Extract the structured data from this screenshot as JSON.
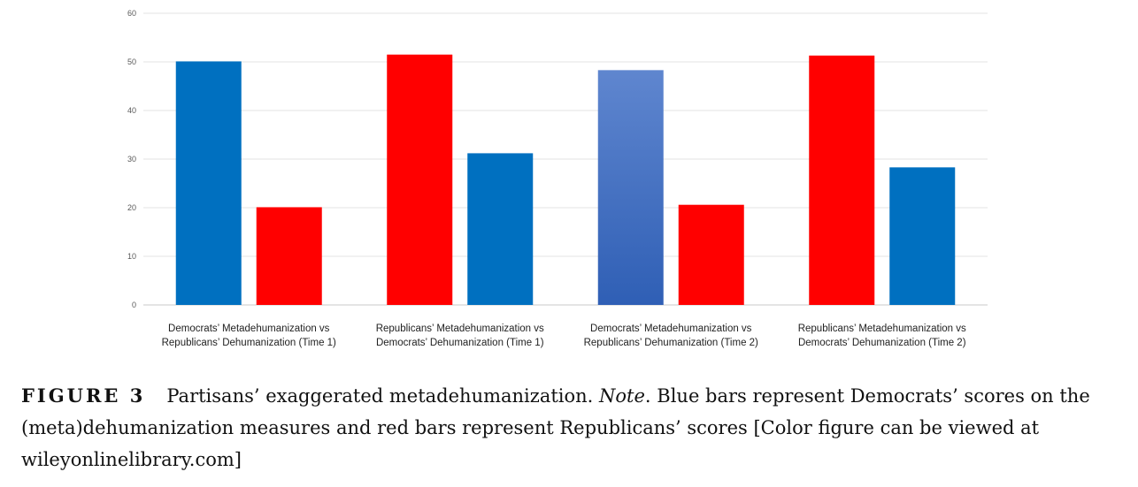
{
  "chart_data": {
    "type": "bar",
    "categories": [
      [
        "Democrats’ Metadehumanization vs",
        "Republicans’ Dehumanization (Time 1)"
      ],
      [
        "Republicans’ Metadehumanization vs",
        "Democrats’ Dehumanization (Time 1)"
      ],
      [
        "Democrats’ Metadehumanization vs",
        "Republicans’ Dehumanization (Time 2)"
      ],
      [
        "Republicans’ Metadehumanization vs",
        "Democrats’ Dehumanization (Time 2)"
      ]
    ],
    "bars": [
      [
        {
          "value": 50.1,
          "color": "#0070c0"
        },
        {
          "value": 20.1,
          "color": "#ff0000"
        }
      ],
      [
        {
          "value": 51.5,
          "color": "#ff0000"
        },
        {
          "value": 31.2,
          "color": "#0070c0"
        }
      ],
      [
        {
          "value": 48.3,
          "color": "#4472c4"
        },
        {
          "value": 20.6,
          "color": "#ff0000"
        }
      ],
      [
        {
          "value": 51.3,
          "color": "#ff0000"
        },
        {
          "value": 28.3,
          "color": "#0070c0"
        }
      ]
    ],
    "ylim": [
      0,
      60
    ],
    "yticks": [
      0,
      10,
      20,
      30,
      40,
      50,
      60
    ],
    "grid": true,
    "xlabel": "",
    "ylabel": ""
  },
  "caption": {
    "label": "FIGURE 3",
    "text_before_note": "Partisans’ exaggerated metadehumanization. ",
    "note_label": "Note",
    "text_after_note": ". Blue bars represent Democrats’ scores on the (meta)dehumanization measures and red bars represent Republicans’ scores [Color figure can be viewed at wileyonlinelibrary.com]"
  }
}
